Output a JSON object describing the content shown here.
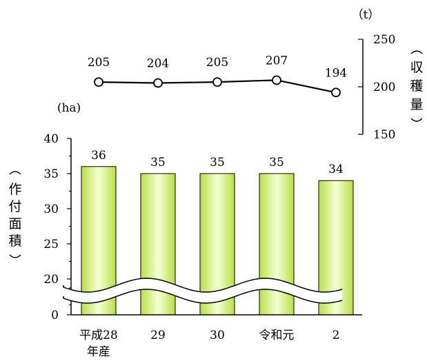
{
  "chart_data": [
    {
      "type": "line",
      "categories": [
        "平成28年産",
        "29",
        "30",
        "令和元",
        "2"
      ],
      "series": [
        {
          "values": [
            205,
            204,
            205,
            207,
            194
          ]
        }
      ],
      "ylabel": "収穫量",
      "yunit": "（t）",
      "ylim": [
        150,
        250
      ],
      "yticks": [
        150,
        200,
        250
      ],
      "ytick_labels": [
        "150",
        "200",
        "250"
      ],
      "data_labels": [
        "205",
        "204",
        "205",
        "207",
        "194"
      ],
      "grid": false
    },
    {
      "type": "bar",
      "categories": [
        "平成28年産",
        "29",
        "30",
        "令和元",
        "2"
      ],
      "category_lines": [
        [
          "平成28",
          "年産"
        ],
        [
          "29"
        ],
        [
          "30"
        ],
        [
          "令和元"
        ],
        [
          "2"
        ]
      ],
      "values": [
        36,
        35,
        35,
        35,
        34
      ],
      "data_labels": [
        "36",
        "35",
        "35",
        "35",
        "34"
      ],
      "ylabel": "作付面積",
      "yunit": "(ha)",
      "ylim": [
        0,
        40
      ],
      "yticks": [
        0,
        20,
        25,
        30,
        35,
        40
      ],
      "ytick_labels": [
        "0",
        "20",
        "25",
        "30",
        "35",
        "40"
      ],
      "axis_break": [
        0,
        20
      ],
      "bar_color": "#d6f08a",
      "grid": false
    }
  ]
}
